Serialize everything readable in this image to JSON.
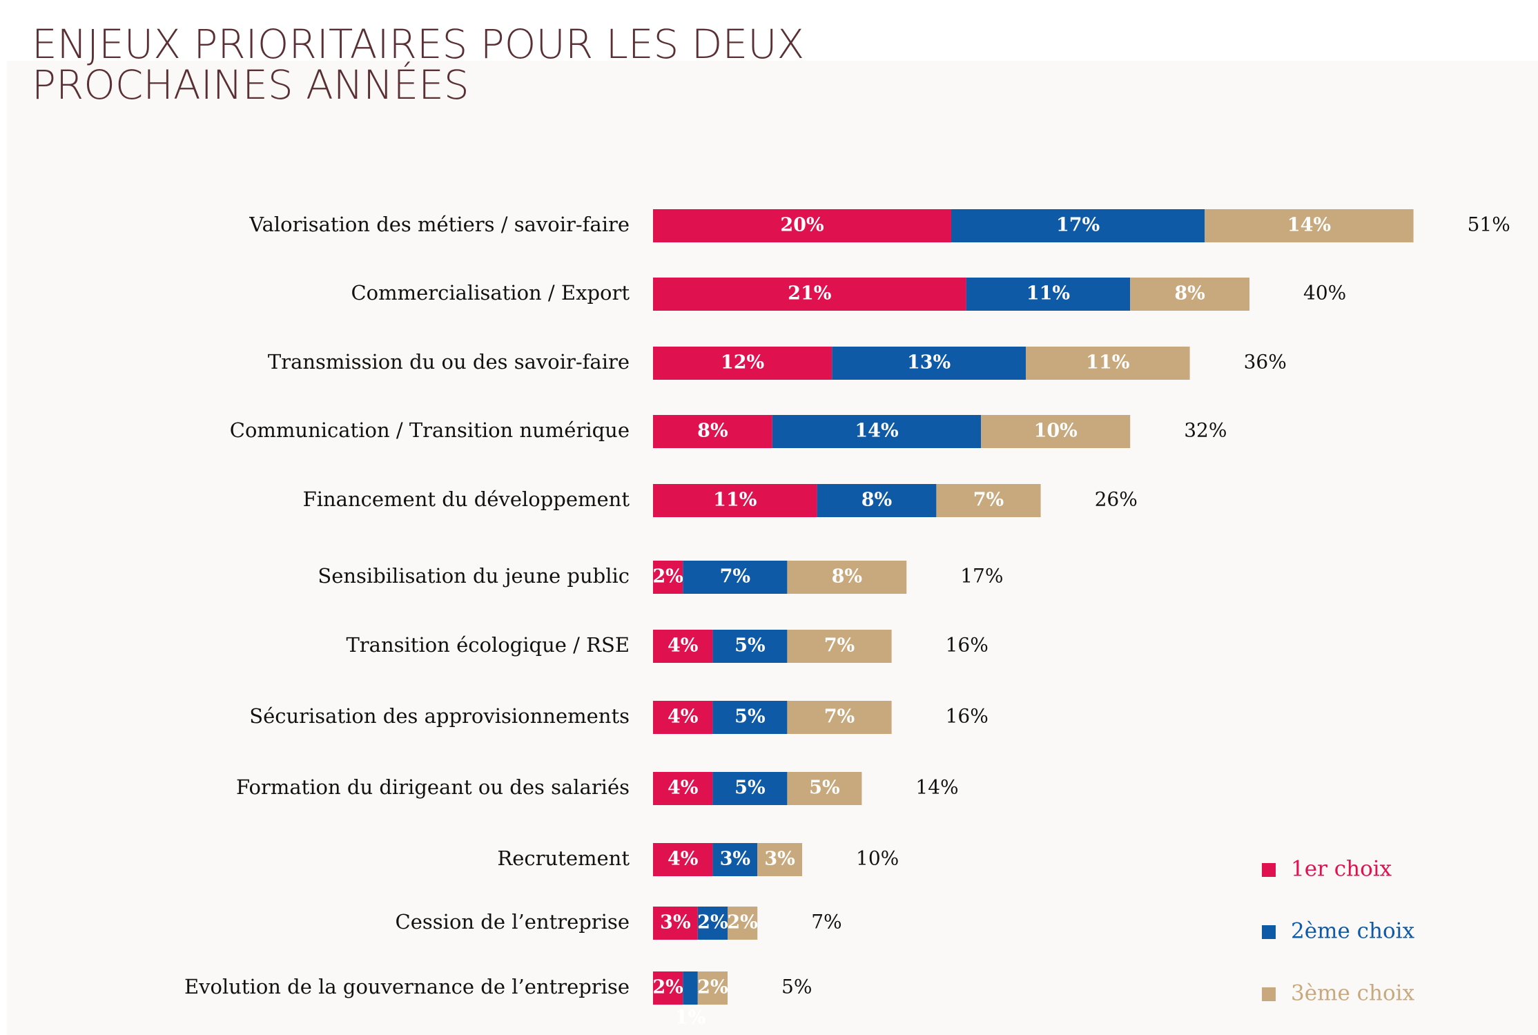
{
  "chart_data": {
    "type": "stacked-bar",
    "orientation": "horizontal",
    "title": [
      "ENJEUX PRIORITAIRES POUR LES DEUX",
      "PROCHAINES ANNÉES"
    ],
    "categories": [
      "Valorisation des métiers / savoir-faire",
      "Commercialisation / Export",
      "Transmission du ou des savoir-faire",
      "Communication / Transition numérique",
      "Financement du développement",
      "Sensibilisation du jeune public",
      "Transition écologique / RSE",
      "Sécurisation des approvisionnements",
      "Formation du dirigeant ou des salariés",
      "Recrutement",
      "Cession de l’entreprise",
      "Evolution de la gouvernance de l’entreprise"
    ],
    "series": [
      {
        "name": "1er choix",
        "color": "#e0114f",
        "values": [
          20,
          21,
          12,
          8,
          11,
          2,
          4,
          4,
          4,
          4,
          3,
          2
        ],
        "value_labels": [
          "20%",
          "21%",
          "12%",
          "8%",
          "11%",
          "2%",
          "4%",
          "4%",
          "4%",
          "4%",
          "3%",
          "2%"
        ]
      },
      {
        "name": "2ème choix",
        "color": "#0e5aa7",
        "values": [
          17,
          11,
          13,
          14,
          8,
          7,
          5,
          5,
          5,
          3,
          2,
          1
        ],
        "value_labels": [
          "17%",
          "11%",
          "13%",
          "14%",
          "8%",
          "7%",
          "5%",
          "5%",
          "5%",
          "3%",
          "2%",
          "1%"
        ]
      },
      {
        "name": "3ème choix",
        "color": "#c8a97e",
        "values": [
          14,
          8,
          11,
          10,
          7,
          8,
          7,
          7,
          5,
          3,
          2,
          2
        ],
        "value_labels": [
          "14%",
          "8%",
          "11%",
          "10%",
          "7%",
          "8%",
          "7%",
          "7%",
          "5%",
          "3%",
          "2%",
          "2%"
        ]
      }
    ],
    "totals": [
      51,
      40,
      36,
      32,
      26,
      17,
      16,
      16,
      14,
      10,
      7,
      5
    ],
    "total_labels": [
      "51%",
      "40%",
      "36%",
      "32%",
      "26%",
      "17%",
      "16%",
      "16%",
      "14%",
      "10%",
      "7%",
      "5%"
    ],
    "legend": "bottom-right"
  }
}
